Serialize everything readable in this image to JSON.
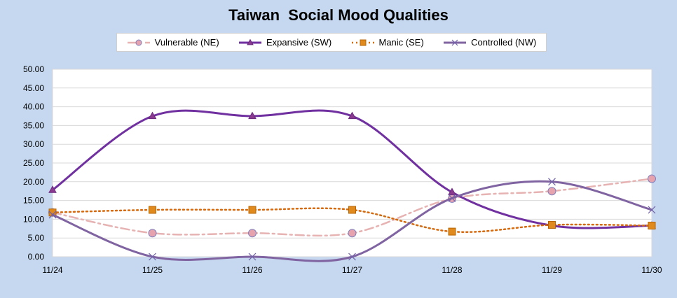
{
  "chart_data": {
    "type": "line",
    "title": "Taiwan  Social Mood Qualities",
    "categories": [
      "11/24",
      "11/25",
      "11/26",
      "11/27",
      "11/28",
      "11/29",
      "11/30"
    ],
    "ylim": [
      0,
      50
    ],
    "yticks": [
      "0.00",
      "5.00",
      "10.00",
      "15.00",
      "20.00",
      "25.00",
      "30.00",
      "35.00",
      "40.00",
      "45.00",
      "50.00"
    ],
    "grid": true,
    "legend_position": "top",
    "series": [
      {
        "name": "Vulnerable (NE)",
        "values": [
          11.8,
          6.3,
          6.3,
          6.3,
          15.5,
          17.5,
          20.8
        ],
        "color": "#e6b2b2",
        "marker": "circle",
        "dash": "dash-dot",
        "marker_fill": "#e6a3ae",
        "marker_stroke": "#7f7fbf"
      },
      {
        "name": "Expansive (SW)",
        "values": [
          17.8,
          37.5,
          37.5,
          37.5,
          17.2,
          8.3,
          8.3
        ],
        "color": "#7030a0",
        "marker": "triangle",
        "dash": "solid",
        "marker_fill": "#8b3a8f",
        "marker_stroke": "#6a2a7f"
      },
      {
        "name": "Manic (SE)",
        "values": [
          11.8,
          12.5,
          12.5,
          12.5,
          6.7,
          8.5,
          8.3
        ],
        "color": "#d46a0f",
        "marker": "square",
        "dash": "dot",
        "marker_fill": "#e08a1e",
        "marker_stroke": "#b86400"
      },
      {
        "name": "Controlled (NW)",
        "values": [
          11.2,
          0.0,
          0.0,
          0.0,
          15.6,
          20.0,
          12.5
        ],
        "color": "#8064a2",
        "marker": "x",
        "dash": "solid",
        "marker_fill": "#8064a2",
        "marker_stroke": "#7060a8"
      }
    ]
  }
}
